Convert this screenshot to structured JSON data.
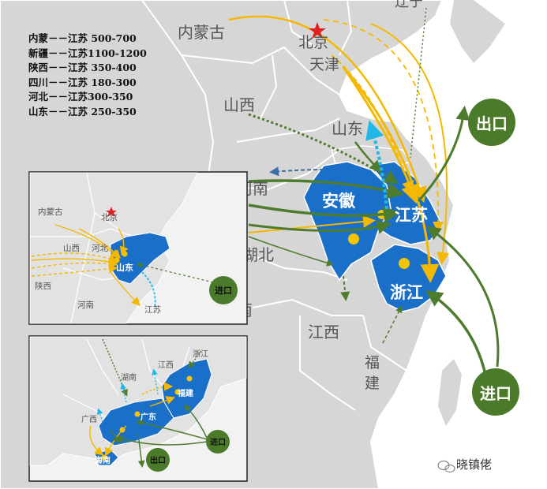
{
  "legend": [
    "内蒙－－江苏 500-700",
    "新疆－－江苏1100-1200",
    "陕西－－江苏 350-400",
    "四川－－江苏 180-300",
    "河北－－江苏300-350",
    "山东－－江苏 250-350"
  ],
  "main_map": {
    "labels": {
      "inner_mongolia": "内蒙古",
      "beijing": "北京",
      "tianjin": "天津",
      "shanxi": "山西",
      "shandong": "山东",
      "henan": "河南",
      "anhui": "安徽",
      "jiangsu": "江苏",
      "hubei": "湖北",
      "zhejiang": "浙江",
      "jiangxi": "江西",
      "fujian": "福建",
      "liaoning": "辽宁",
      "export": "出口",
      "import": "进口"
    }
  },
  "inset_shandong": {
    "labels": {
      "inner_mongolia": "内蒙古",
      "beijing": "北京",
      "shanxi": "山西",
      "hebei": "河北",
      "shandong": "山东",
      "shaanxi": "陕西",
      "henan": "河南",
      "jiangsu": "江苏",
      "import": "进口"
    }
  },
  "inset_fujian": {
    "labels": {
      "zhejiang": "浙江",
      "jiangxi": "江西",
      "hunan": "湖南",
      "fujian": "福建",
      "guangxi": "广西",
      "guangdong": "广东",
      "hainan": "海南",
      "export": "出口",
      "import": "进口"
    }
  },
  "watermark": "晓镇佬",
  "colors": {
    "land": "#d6d6d6",
    "land_light": "#e4e4e4",
    "sea": "#ffffff",
    "region_blue": "#1a6fc9",
    "circle_green": "#4a7a2a",
    "arrow_yellow": "#f5b800",
    "arrow_green": "#4e7c2f",
    "arrow_blue": "#3b6ea5",
    "arrow_cyan": "#20b8e6"
  }
}
